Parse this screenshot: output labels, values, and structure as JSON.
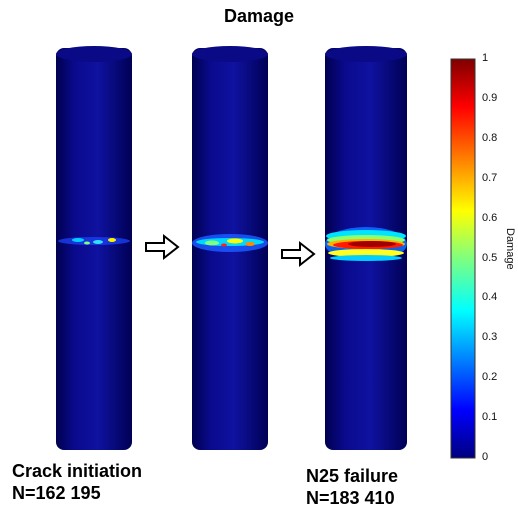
{
  "title": "Damage",
  "panels": [
    {
      "id": "initiation",
      "crack_intensity": 0.25,
      "caption_line1": "Crack initiation",
      "caption_line2": "N=162 195"
    },
    {
      "id": "intermediate",
      "crack_intensity": 0.6,
      "caption_line1": "",
      "caption_line2": ""
    },
    {
      "id": "failure",
      "crack_intensity": 1.0,
      "caption_line1": "N25 failure",
      "caption_line2": "N=183 410"
    }
  ],
  "colorbar": {
    "title": "Damage",
    "ticks": [
      "0",
      "0.1",
      "0.2",
      "0.3",
      "0.4",
      "0.5",
      "0.6",
      "0.7",
      "0.8",
      "0.9",
      "1"
    ],
    "colormap": [
      "#00007f",
      "#0000ff",
      "#007fff",
      "#00ffff",
      "#7fff7f",
      "#ffff00",
      "#ff7f00",
      "#ff0000",
      "#7f0000"
    ]
  },
  "colors": {
    "specimen": "#0b0b8c",
    "specimen_edge": "#05056a"
  }
}
